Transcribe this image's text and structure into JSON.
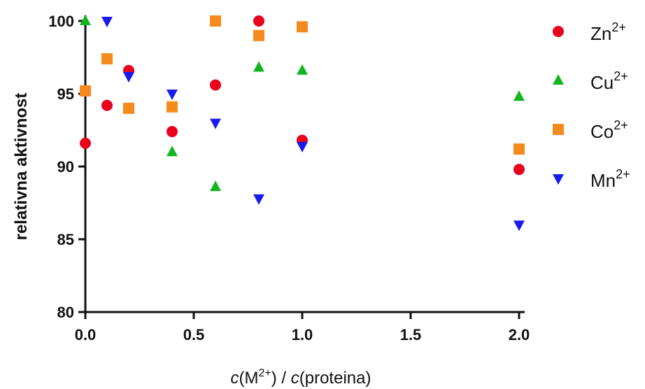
{
  "chart_data": {
    "type": "scatter",
    "xlabel": {
      "pre": "c",
      "open": "(M",
      "sup": "2+",
      "mid": ") / ",
      "post_italic": "c",
      "post": "(proteina)"
    },
    "ylabel": "relativna aktivnost",
    "xlim": [
      0,
      2.0
    ],
    "ylim": [
      80,
      100
    ],
    "x_ticks": [
      "0.0",
      "0.5",
      "1.0",
      "1.5",
      "2.0"
    ],
    "y_ticks": [
      "80",
      "85",
      "90",
      "95",
      "100"
    ],
    "grid": false,
    "legend_position": "right",
    "series": [
      {
        "name": "Zn",
        "sup": "2+",
        "marker": "circle",
        "color": "#e8001c",
        "points": [
          [
            0.0,
            91.6
          ],
          [
            0.1,
            94.2
          ],
          [
            0.2,
            96.6
          ],
          [
            0.4,
            92.4
          ],
          [
            0.6,
            95.6
          ],
          [
            0.8,
            100.0
          ],
          [
            1.0,
            91.8
          ],
          [
            2.0,
            89.8
          ]
        ]
      },
      {
        "name": "Cu",
        "sup": "2+",
        "marker": "triangle-up",
        "color": "#12b51f",
        "points": [
          [
            0.0,
            100.0
          ],
          [
            0.4,
            91.0
          ],
          [
            0.6,
            88.6
          ],
          [
            0.8,
            96.8
          ],
          [
            1.0,
            96.6
          ],
          [
            2.0,
            94.8
          ]
        ]
      },
      {
        "name": "Co",
        "sup": "2+",
        "marker": "square",
        "color": "#f58a1f",
        "points": [
          [
            0.0,
            95.2
          ],
          [
            0.1,
            97.4
          ],
          [
            0.2,
            94.0
          ],
          [
            0.4,
            94.1
          ],
          [
            0.6,
            100.0
          ],
          [
            0.8,
            99.0
          ],
          [
            1.0,
            99.6
          ],
          [
            2.0,
            91.2
          ]
        ]
      },
      {
        "name": "Mn",
        "sup": "2+",
        "marker": "triangle-down",
        "color": "#1a1af0",
        "points": [
          [
            0.1,
            100.0
          ],
          [
            0.2,
            96.2
          ],
          [
            0.4,
            95.0
          ],
          [
            0.6,
            93.0
          ],
          [
            0.8,
            87.8
          ],
          [
            1.0,
            91.4
          ],
          [
            2.0,
            86.0
          ]
        ]
      }
    ]
  }
}
